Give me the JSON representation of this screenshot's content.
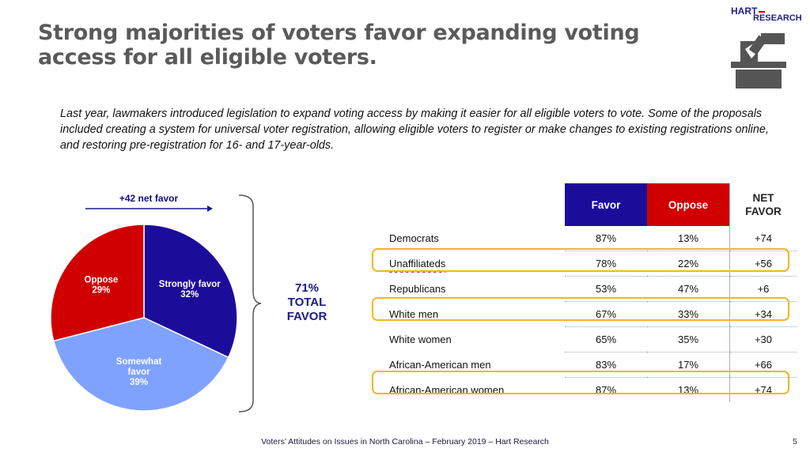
{
  "logo": {
    "line1": "HART",
    "line2": "RESEARCH"
  },
  "title": "Strong majorities of voters favor expanding voting access for all eligible voters.",
  "intro": "Last year, lawmakers introduced legislation to expand voting access by making it easier for all eligible voters  to vote. Some of the proposals included creating a system for universal voter registration, allowing eligible voters to register or make changes to existing registrations online, and restoring pre-registration for 16- and 17-year-olds.",
  "net_favor_label": "+42 net favor",
  "total_favor": {
    "pct": "71%",
    "line2": "TOTAL",
    "line3": "FAVOR"
  },
  "colors": {
    "strongly": "#1c0c9a",
    "somewhat": "#7fa2ff",
    "oppose": "#d00000",
    "highlight": "#f2b623"
  },
  "chart_data": {
    "type": "pie",
    "title": "",
    "slices": [
      {
        "label": "Strongly favor",
        "value": 32,
        "display": "32%"
      },
      {
        "label": "Somewhat favor",
        "value": 39,
        "display": "39%"
      },
      {
        "label": "Oppose",
        "value": 29,
        "display": "29%"
      }
    ],
    "table": {
      "columns": [
        "Favor",
        "Oppose",
        "NET FAVOR"
      ],
      "rows": [
        {
          "group": "Democrats",
          "favor": "87%",
          "oppose": "13%",
          "net": "+74",
          "highlight": false
        },
        {
          "group": "Unaffiliateds",
          "favor": "78%",
          "oppose": "22%",
          "net": "+56",
          "highlight": true
        },
        {
          "group": "Republicans",
          "favor": "53%",
          "oppose": "47%",
          "net": "+6",
          "highlight": false
        },
        {
          "group": "White men",
          "favor": "67%",
          "oppose": "33%",
          "net": "+34",
          "highlight": true
        },
        {
          "group": "White women",
          "favor": "65%",
          "oppose": "35%",
          "net": "+30",
          "highlight": false
        },
        {
          "group": "African-American men",
          "favor": "83%",
          "oppose": "17%",
          "net": "+66",
          "highlight": false
        },
        {
          "group": "African-American women",
          "favor": "87%",
          "oppose": "13%",
          "net": "+74",
          "highlight": true
        }
      ]
    }
  },
  "table_headers": {
    "favor": "Favor",
    "oppose": "Oppose",
    "net_line1": "NET",
    "net_line2": "FAVOR"
  },
  "footer": "Voters’ Attitudes on Issues in North Carolina – February 2019 – Hart Research",
  "page_number": "5"
}
